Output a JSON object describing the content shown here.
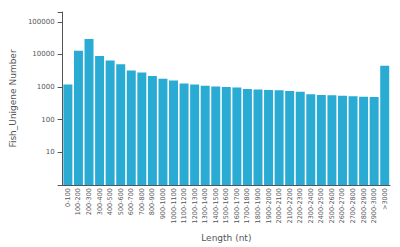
{
  "chart_data": {
    "type": "bar",
    "categories": [
      "0-100",
      "100-200",
      "200-300",
      "300-400",
      "400-500",
      "500-600",
      "600-700",
      "700-800",
      "800-900",
      "900-1000",
      "1000-1100",
      "1100-1200",
      "1200-1300",
      "1300-1400",
      "1400-1500",
      "1500-1600",
      "1600-1700",
      "1700-1800",
      "1800-1900",
      "1900-2000",
      "2000-2100",
      "2100-2200",
      "2200-2300",
      "2300-2400",
      "2400-2500",
      "2500-2600",
      "2600-2700",
      "2700-2800",
      "2800-2900",
      "2900-3000",
      ">3000"
    ],
    "values": [
      1200,
      13000,
      30000,
      9000,
      6500,
      5000,
      3200,
      2800,
      2200,
      1800,
      1600,
      1300,
      1200,
      1100,
      1050,
      1000,
      970,
      870,
      840,
      820,
      800,
      760,
      720,
      600,
      570,
      560,
      540,
      520,
      510,
      500,
      4500
    ],
    "color": "#29ABD4",
    "xlabel": "Length (nt)",
    "ylabel": "Fish_Unigene Number",
    "log": "y",
    "ylim": [
      1,
      200000
    ],
    "yticks": [
      10,
      100,
      1000,
      10000,
      100000
    ],
    "grid": false
  }
}
